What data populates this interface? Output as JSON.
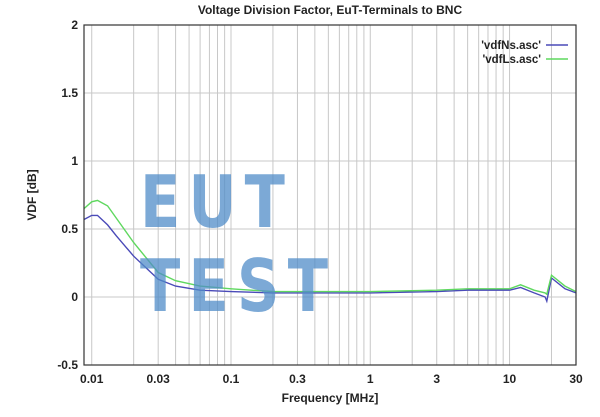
{
  "chart_data": {
    "type": "line",
    "title": "Voltage Division Factor, EuT-Terminals to BNC",
    "xlabel": "Frequency [MHz]",
    "ylabel": "VDF [dB]",
    "xscale": "log",
    "xlim": [
      0.0088,
      30
    ],
    "ylim": [
      -0.5,
      2
    ],
    "xticks": [
      0.01,
      0.03,
      0.1,
      0.3,
      1,
      3,
      10,
      30
    ],
    "xtick_labels": [
      "0.01",
      "0.03",
      "0.1",
      "0.3",
      "1",
      "3",
      "10",
      "30"
    ],
    "yticks": [
      -0.5,
      0,
      0.5,
      1,
      1.5,
      2
    ],
    "ytick_labels": [
      "-0.5",
      "0",
      "0.5",
      "1",
      "1.5",
      "2"
    ],
    "grid": true,
    "legend_position": "top-right",
    "series": [
      {
        "name": "'vdfNs.asc'",
        "color": "#4a4ab8",
        "x": [
          0.0088,
          0.01,
          0.011,
          0.013,
          0.015,
          0.02,
          0.03,
          0.04,
          0.06,
          0.1,
          0.2,
          1,
          3,
          5,
          7,
          10,
          12,
          15,
          18,
          18.5,
          20,
          25,
          30
        ],
        "y": [
          0.57,
          0.6,
          0.6,
          0.53,
          0.45,
          0.3,
          0.13,
          0.08,
          0.05,
          0.04,
          0.03,
          0.03,
          0.04,
          0.05,
          0.05,
          0.05,
          0.07,
          0.03,
          0.0,
          -0.03,
          0.14,
          0.06,
          0.03
        ]
      },
      {
        "name": "'vdfLs.asc'",
        "color": "#5fd85f",
        "x": [
          0.0088,
          0.01,
          0.011,
          0.013,
          0.015,
          0.02,
          0.03,
          0.04,
          0.06,
          0.1,
          0.2,
          1,
          3,
          5,
          7,
          10,
          12,
          15,
          18,
          18.5,
          20,
          25,
          30
        ],
        "y": [
          0.65,
          0.7,
          0.71,
          0.67,
          0.58,
          0.4,
          0.18,
          0.12,
          0.08,
          0.06,
          0.04,
          0.04,
          0.05,
          0.06,
          0.06,
          0.06,
          0.09,
          0.05,
          0.03,
          0.02,
          0.16,
          0.08,
          0.04
        ]
      }
    ]
  },
  "watermark": "EUT TEST"
}
